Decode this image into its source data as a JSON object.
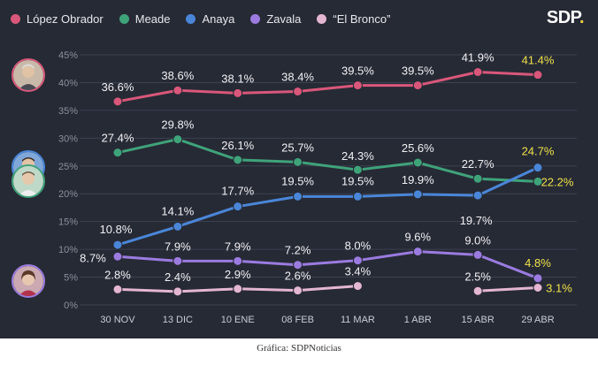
{
  "brand": {
    "name": "SDP",
    "dot": "."
  },
  "caption": "Gráfica: SDPNoticias",
  "avatars": [
    {
      "name": "avatar-lopez-obrador",
      "ring": "#d9577a"
    },
    {
      "name": "avatar-anaya",
      "ring": "#4a86d8"
    },
    {
      "name": "avatar-meade",
      "ring": "#3fa37a"
    },
    {
      "name": "avatar-zavala",
      "ring": "#9b7be0"
    }
  ],
  "chart_data": {
    "type": "line",
    "x": [
      "30 NOV",
      "13 DIC",
      "10 ENE",
      "08 FEB",
      "11 MAR",
      "1 ABR",
      "15 ABR",
      "29 ABR"
    ],
    "yticks": [
      "0%",
      "5%",
      "10%",
      "15%",
      "20%",
      "25%",
      "30%",
      "35%",
      "40%",
      "45%"
    ],
    "ylim": [
      0,
      45
    ],
    "grid": true,
    "legend": "top-left",
    "highlight_color": "#f0e14a",
    "series": [
      {
        "name": "López Obrador",
        "color": "#d9577a",
        "values": [
          36.6,
          38.6,
          38.1,
          38.4,
          39.5,
          39.5,
          41.9,
          41.4
        ],
        "labels": [
          "36.6%",
          "38.6%",
          "38.1%",
          "38.4%",
          "39.5%",
          "39.5%",
          "41.9%",
          "41.4%"
        ]
      },
      {
        "name": "Meade",
        "color": "#3fa37a",
        "values": [
          27.4,
          29.8,
          26.1,
          25.7,
          24.3,
          25.6,
          22.7,
          22.2
        ],
        "labels": [
          "27.4%",
          "29.8%",
          "26.1%",
          "25.7%",
          "24.3%",
          "25.6%",
          "22.7%",
          "22.2%"
        ]
      },
      {
        "name": "Anaya",
        "color": "#4a86d8",
        "values": [
          10.8,
          14.1,
          17.7,
          19.5,
          19.5,
          19.9,
          19.7,
          24.7
        ],
        "labels": [
          "10.8%",
          "14.1%",
          "17.7%",
          "19.5%",
          "19.5%",
          "19.9%",
          "19.7%",
          "24.7%"
        ]
      },
      {
        "name": "Zavala",
        "color": "#9b7be0",
        "values": [
          8.7,
          7.9,
          7.9,
          7.2,
          8.0,
          9.6,
          9.0,
          4.8
        ],
        "labels": [
          "8.7%",
          "7.9%",
          "7.9%",
          "7.2%",
          "8.0%",
          "9.6%",
          "9.0%",
          "4.8%"
        ]
      },
      {
        "name": "“El Bronco”",
        "color": "#e4b6d2",
        "values": [
          2.8,
          2.4,
          2.9,
          2.6,
          3.4,
          null,
          2.5,
          3.1
        ],
        "labels": [
          "2.8%",
          "2.4%",
          "2.9%",
          "2.6%",
          "3.4%",
          "",
          "2.5%",
          "3.1%"
        ]
      }
    ]
  }
}
